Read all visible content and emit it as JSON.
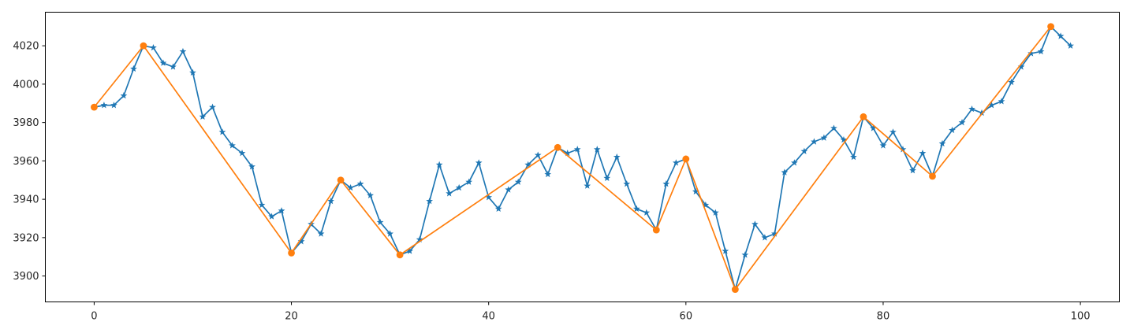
{
  "chart_data": {
    "type": "line",
    "title": "",
    "xlabel": "",
    "ylabel": "",
    "xlim": [
      -4.95,
      103.95
    ],
    "ylim": [
      3886.5,
      4037.5
    ],
    "x_ticks": [
      0,
      20,
      40,
      60,
      80,
      100
    ],
    "y_ticks": [
      3900,
      3920,
      3940,
      3960,
      3980,
      4000,
      4020
    ],
    "grid": false,
    "legend": "none",
    "series": [
      {
        "color": "#1f77b4",
        "marker": "star",
        "x": [
          0,
          1,
          2,
          3,
          4,
          5,
          6,
          7,
          8,
          9,
          10,
          11,
          12,
          13,
          14,
          15,
          16,
          17,
          18,
          19,
          20,
          21,
          22,
          23,
          24,
          25,
          26,
          27,
          28,
          29,
          30,
          31,
          32,
          33,
          34,
          35,
          36,
          37,
          38,
          39,
          40,
          41,
          42,
          43,
          44,
          45,
          46,
          47,
          48,
          49,
          50,
          51,
          52,
          53,
          54,
          55,
          56,
          57,
          58,
          59,
          60,
          61,
          62,
          63,
          64,
          65,
          66,
          67,
          68,
          69,
          70,
          71,
          72,
          73,
          74,
          75,
          76,
          77,
          78,
          79,
          80,
          81,
          82,
          83,
          84,
          85,
          86,
          87,
          88,
          89,
          90,
          91,
          92,
          93,
          94,
          95,
          96,
          97,
          98,
          99
        ],
        "y": [
          3988,
          3989,
          3989,
          3994,
          4008,
          4020,
          4019,
          4011,
          4009,
          4017,
          4006,
          3983,
          3988,
          3975,
          3968,
          3964,
          3957,
          3937,
          3931,
          3934,
          3912,
          3918,
          3927,
          3922,
          3939,
          3950,
          3946,
          3948,
          3942,
          3928,
          3922,
          3911,
          3913,
          3919,
          3939,
          3958,
          3943,
          3946,
          3949,
          3959,
          3941,
          3935,
          3945,
          3949,
          3958,
          3963,
          3953,
          3967,
          3964,
          3966,
          3947,
          3966,
          3951,
          3962,
          3948,
          3935,
          3933,
          3924,
          3948,
          3959,
          3961,
          3944,
          3937,
          3933,
          3913,
          3893,
          3911,
          3927,
          3920,
          3922,
          3954,
          3959,
          3965,
          3970,
          3972,
          3977,
          3971,
          3962,
          3983,
          3977,
          3968,
          3975,
          3966,
          3955,
          3964,
          3952,
          3969,
          3976,
          3980,
          3987,
          3985,
          3989,
          3991,
          4001,
          4009,
          4016,
          4017,
          4030,
          4025,
          4020
        ]
      },
      {
        "color": "#ff7f0e",
        "marker": "circle",
        "x": [
          0,
          5,
          20,
          25,
          31,
          47,
          57,
          60,
          65,
          78,
          85,
          97
        ],
        "y": [
          3988,
          4020,
          3912,
          3950,
          3911,
          3967,
          3924,
          3961,
          3893,
          3983,
          3952,
          4030
        ]
      }
    ]
  }
}
